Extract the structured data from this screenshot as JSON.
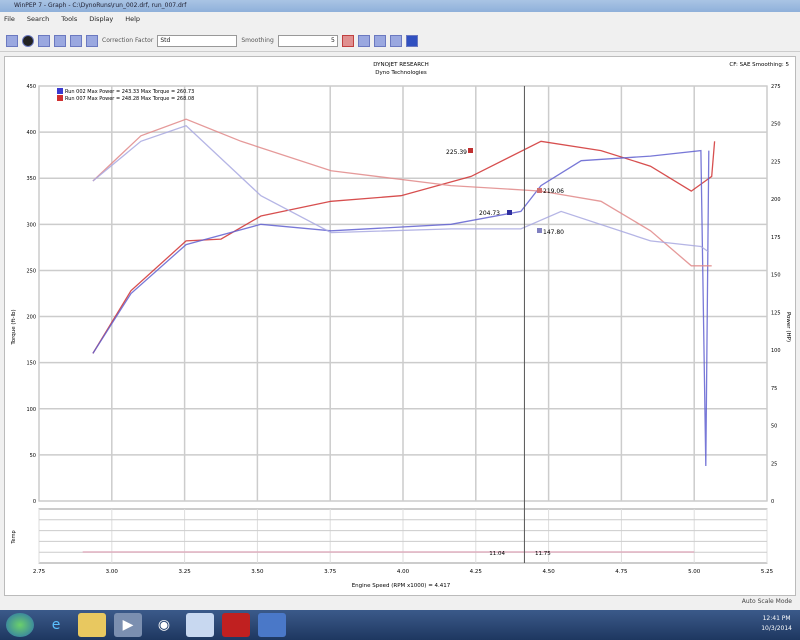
{
  "window": {
    "title": "WinPEP 7 - Graph - C:\\DynoRuns\\run_002.drf, run_007.drf"
  },
  "menu": [
    "File",
    "Search",
    "Tools",
    "Display",
    "Help"
  ],
  "toolbar": {
    "correction_label": "Correction Factor",
    "correction_value": "Std",
    "smoothing_label": "Smoothing",
    "smoothing_value": "5"
  },
  "header": {
    "line1": "DYNOJET RESEARCH",
    "line2": "Dyno Technologies",
    "right": "CF: SAE   Smoothing: 5"
  },
  "legend": [
    {
      "text": "Run 002 Max Power = 243.33 Max Torque = 260.73",
      "color": "#3a3ad0"
    },
    {
      "text": "Run 007 Max Power = 248.28 Max Torque = 268.08",
      "color": "#d03030"
    }
  ],
  "chart_data": {
    "type": "line",
    "xlabel": "Engine Speed (RPM x1000)",
    "ylabel": "Torque (ft-lb)",
    "y2label": "Power (HP)",
    "xlim": [
      2.75,
      5.25
    ],
    "ylim": [
      0,
      450
    ],
    "x_ticks": [
      "2.75",
      "3.00",
      "3.25",
      "3.50",
      "3.75",
      "4.00",
      "4.25",
      "4.50",
      "4.75",
      "5.00",
      "5.25"
    ],
    "y_ticks": [
      "0",
      "50",
      "100",
      "150",
      "200",
      "250",
      "300",
      "350",
      "400",
      "450"
    ],
    "y2_ticks": [
      "0",
      "25",
      "50",
      "75",
      "100",
      "125",
      "150",
      "175",
      "200",
      "225",
      "250",
      "275"
    ],
    "grid": true,
    "cursor_x": 4.417,
    "cursor_readout": "Engine Speed (RPM x1000) = 4.417",
    "readouts": [
      "225.39",
      "219.06",
      "204.73",
      "147.80"
    ],
    "lower_readouts": [
      "11.04",
      "11.75"
    ],
    "lower_ylabel": "Temp",
    "series": [
      {
        "color": "#d03030",
        "x": [
          2.935,
          3.066,
          3.255,
          3.375,
          3.512,
          3.753,
          3.993,
          4.234,
          4.474,
          4.68,
          4.85,
          4.99,
          5.06,
          5.07
        ],
        "y": [
          160,
          228,
          282,
          284,
          309,
          325,
          331,
          352,
          390,
          380,
          363,
          336,
          352,
          390
        ]
      },
      {
        "color": "#6060d0",
        "x": [
          2.935,
          3.066,
          3.255,
          3.512,
          3.753,
          4.165,
          4.405,
          4.474,
          4.612,
          4.85,
          5.023,
          5.04,
          5.05
        ],
        "y": [
          160,
          225,
          278,
          300,
          293,
          300,
          314,
          342,
          369,
          374,
          380,
          38,
          380
        ]
      },
      {
        "color": "#e08888",
        "x": [
          2.935,
          3.1,
          3.255,
          3.444,
          3.753,
          4.165,
          4.474,
          4.68,
          4.85,
          4.99,
          5.06
        ],
        "y": [
          347,
          396,
          414,
          390,
          358,
          342,
          336,
          325,
          293,
          255,
          255
        ]
      },
      {
        "color": "#a8a8e0",
        "x": [
          2.935,
          3.1,
          3.255,
          3.512,
          3.753,
          4.165,
          4.405,
          4.543,
          4.85,
          5.023,
          5.05
        ],
        "y": [
          347,
          390,
          407,
          331,
          291,
          295,
          295,
          314,
          282,
          276,
          270
        ]
      }
    ]
  },
  "status": "Auto Scale Mode",
  "taskbar": {
    "time": "12:41 PM",
    "date": "10/3/2014",
    "apps": [
      "start",
      "ie",
      "explorer",
      "media",
      "chrome",
      "notes",
      "dyno",
      "app"
    ]
  }
}
